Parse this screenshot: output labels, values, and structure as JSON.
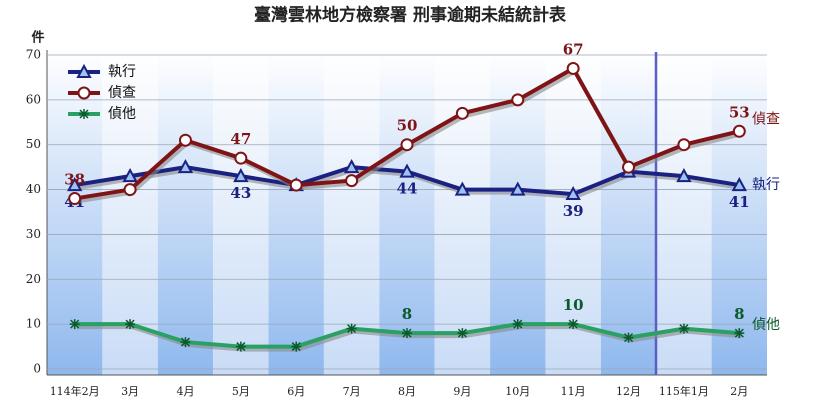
{
  "chart_data": {
    "type": "line",
    "title": "臺灣雲林地方檢察署 刑事逾期未結統計表",
    "y_label": "件",
    "categories": [
      "114年2月",
      "3月",
      "4月",
      "5月",
      "6月",
      "7月",
      "8月",
      "9月",
      "10月",
      "11月",
      "12月",
      "115年1月",
      "2月"
    ],
    "series": [
      {
        "name": "執行",
        "color": "#1a2180",
        "marker": "triangle",
        "label_position": "below",
        "labeled": [
          0,
          3,
          6,
          9,
          12
        ],
        "values": [
          41,
          43,
          45,
          43,
          41,
          45,
          44,
          40,
          40,
          39,
          44,
          43,
          41
        ]
      },
      {
        "name": "偵查",
        "color": "#7f1416",
        "marker": "circle",
        "label_position": "above",
        "labeled": [
          0,
          3,
          6,
          9,
          12
        ],
        "values": [
          38,
          40,
          51,
          47,
          41,
          42,
          50,
          57,
          60,
          67,
          45,
          50,
          53
        ]
      },
      {
        "name": "偵他",
        "color": "#2aa063",
        "marker": "asterisk",
        "label_position": "above",
        "labeled": [
          6,
          9,
          12
        ],
        "values": [
          10,
          10,
          6,
          5,
          5,
          9,
          8,
          8,
          10,
          10,
          7,
          9,
          8
        ]
      }
    ],
    "ylim": [
      0,
      70
    ],
    "yticks": [
      0,
      10,
      20,
      30,
      40,
      50,
      60,
      70
    ],
    "grid": true,
    "legend": "top-left"
  }
}
